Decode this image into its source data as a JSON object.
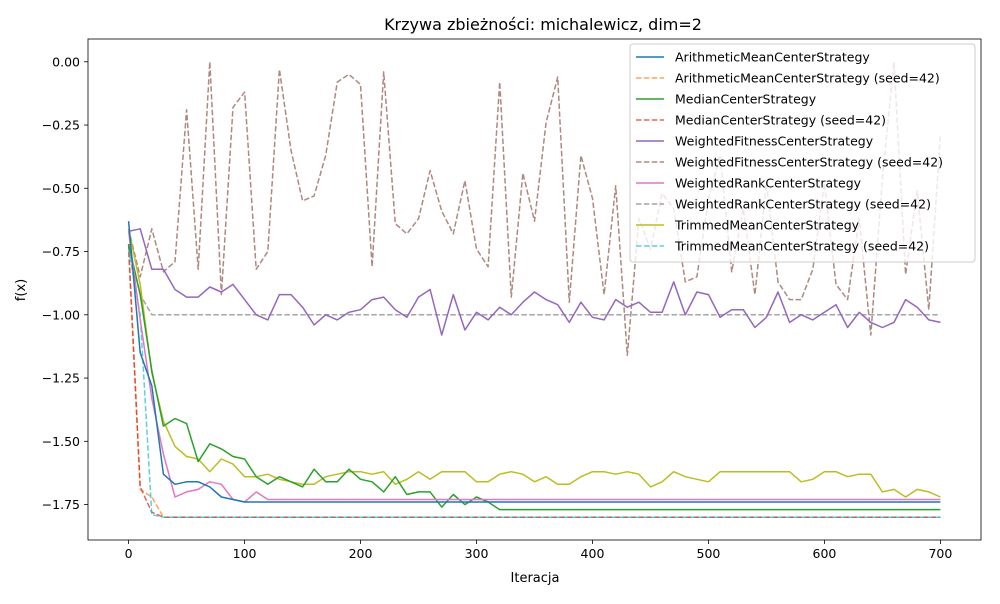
{
  "chart_data": {
    "type": "line",
    "title": "Krzywa zbieżności: michalewicz, dim=2",
    "xlabel": "Iteracja",
    "ylabel": "f(x)",
    "xlim": [
      -35,
      735
    ],
    "ylim": [
      -1.89,
      0.09
    ],
    "xticks": [
      0,
      100,
      200,
      300,
      400,
      500,
      600,
      700
    ],
    "yticks": [
      0.0,
      -0.25,
      -0.5,
      -0.75,
      -1.0,
      -1.25,
      -1.5,
      -1.75
    ],
    "xtick_labels": [
      "0",
      "100",
      "200",
      "300",
      "400",
      "500",
      "600",
      "700"
    ],
    "ytick_labels": [
      "0.00",
      "−0.25",
      "−0.50",
      "−0.75",
      "−1.00",
      "−1.25",
      "−1.50",
      "−1.75"
    ],
    "grid": false,
    "legend_position": "top-right",
    "series": [
      {
        "name": "WeightedFitnessCenterStrategy (seed=42)",
        "color": "#8c564b",
        "dash": true,
        "x": [
          0,
          10,
          20,
          30,
          40,
          50,
          60,
          70,
          80,
          90,
          100,
          110,
          120,
          130,
          140,
          150,
          160,
          170,
          180,
          190,
          200,
          210,
          220,
          230,
          240,
          250,
          260,
          270,
          280,
          290,
          300,
          310,
          320,
          330,
          340,
          350,
          360,
          370,
          380,
          390,
          400,
          410,
          420,
          430,
          440,
          450,
          460,
          470,
          480,
          490,
          500,
          510,
          520,
          530,
          540,
          550,
          560,
          570,
          580,
          590,
          600,
          610,
          620,
          630,
          640,
          650,
          660,
          670,
          680,
          690,
          700
        ],
        "y": [
          -0.66,
          -0.85,
          -0.66,
          -0.83,
          -0.79,
          -0.19,
          -0.82,
          0.0,
          -0.92,
          -0.18,
          -0.12,
          -0.82,
          -0.75,
          -0.03,
          -0.35,
          -0.55,
          -0.53,
          -0.37,
          -0.08,
          -0.05,
          -0.09,
          -0.81,
          -0.04,
          -0.64,
          -0.68,
          -0.62,
          -0.43,
          -0.59,
          -0.68,
          -0.47,
          -0.74,
          -0.81,
          -0.08,
          -0.93,
          -0.44,
          -0.63,
          -0.24,
          -0.06,
          -0.95,
          -0.37,
          -0.54,
          -0.92,
          -0.49,
          -1.16,
          -0.62,
          -0.74,
          -0.52,
          -0.58,
          -0.87,
          -0.85,
          -0.54,
          -0.37,
          -0.83,
          -0.58,
          -0.92,
          -0.48,
          -0.87,
          -0.94,
          -0.94,
          -0.82,
          -0.48,
          -0.88,
          -0.94,
          -0.62,
          -1.08,
          -0.46,
          0.0,
          -0.84,
          -0.51,
          -0.98,
          -0.29
        ]
      },
      {
        "name": "WeightedRankCenterStrategy (seed=42)",
        "color": "#7f7f7f",
        "dash": true,
        "x": [
          0,
          10,
          20,
          30,
          700
        ],
        "y": [
          -0.73,
          -0.92,
          -1.0,
          -1.0,
          -1.0
        ]
      },
      {
        "name": "WeightedFitnessCenterStrategy",
        "color": "#9467bd",
        "dash": false,
        "x": [
          0,
          10,
          20,
          30,
          40,
          50,
          60,
          70,
          80,
          90,
          100,
          110,
          120,
          130,
          140,
          150,
          160,
          170,
          180,
          190,
          200,
          210,
          220,
          230,
          240,
          250,
          260,
          270,
          280,
          290,
          300,
          310,
          320,
          330,
          340,
          350,
          360,
          370,
          380,
          390,
          400,
          410,
          420,
          430,
          440,
          450,
          460,
          470,
          480,
          490,
          500,
          510,
          520,
          530,
          540,
          550,
          560,
          570,
          580,
          590,
          600,
          610,
          620,
          630,
          640,
          650,
          660,
          670,
          680,
          690,
          700
        ],
        "y": [
          -0.67,
          -0.66,
          -0.82,
          -0.82,
          -0.9,
          -0.93,
          -0.93,
          -0.89,
          -0.91,
          -0.88,
          -0.94,
          -1.0,
          -1.02,
          -0.92,
          -0.92,
          -0.97,
          -1.04,
          -1.0,
          -1.02,
          -0.99,
          -0.98,
          -0.94,
          -0.93,
          -0.98,
          -1.01,
          -0.93,
          -0.9,
          -1.08,
          -0.92,
          -1.06,
          -0.99,
          -1.02,
          -0.97,
          -1.0,
          -0.95,
          -0.91,
          -0.94,
          -0.96,
          -1.03,
          -0.95,
          -1.01,
          -1.02,
          -0.94,
          -0.97,
          -0.95,
          -0.99,
          -0.99,
          -0.87,
          -1.0,
          -0.91,
          -0.92,
          -1.01,
          -0.98,
          -0.98,
          -1.05,
          -1.01,
          -0.91,
          -1.03,
          -1.0,
          -1.02,
          -0.99,
          -0.96,
          -1.05,
          -0.99,
          -1.03,
          -1.05,
          -1.03,
          -0.94,
          -0.97,
          -1.02,
          -1.03
        ]
      },
      {
        "name": "ArithmeticMeanCenterStrategy (seed=42)",
        "color": "#ff7f0e",
        "dash": true,
        "x": [
          0,
          10,
          20,
          30,
          40,
          700
        ],
        "y": [
          -0.75,
          -1.69,
          -1.72,
          -1.8,
          -1.8,
          -1.8
        ]
      },
      {
        "name": "MedianCenterStrategy (seed=42)",
        "color": "#d62728",
        "dash": true,
        "x": [
          0,
          10,
          20,
          30,
          40,
          700
        ],
        "y": [
          -0.72,
          -1.68,
          -1.78,
          -1.8,
          -1.8,
          -1.8
        ]
      },
      {
        "name": "TrimmedMeanCenterStrategy (seed=42)",
        "color": "#17becf",
        "dash": true,
        "x": [
          0,
          10,
          20,
          30,
          700
        ],
        "y": [
          -0.74,
          -1.0,
          -1.79,
          -1.8,
          -1.8
        ]
      },
      {
        "name": "TrimmedMeanCenterStrategy",
        "color": "#bcbd22",
        "dash": false,
        "x": [
          0,
          10,
          20,
          30,
          40,
          50,
          60,
          70,
          80,
          90,
          100,
          110,
          120,
          130,
          140,
          150,
          160,
          170,
          180,
          190,
          200,
          210,
          220,
          230,
          240,
          250,
          260,
          270,
          280,
          290,
          300,
          310,
          320,
          330,
          340,
          350,
          360,
          370,
          380,
          390,
          400,
          410,
          420,
          430,
          440,
          450,
          460,
          470,
          480,
          490,
          500,
          510,
          520,
          530,
          540,
          550,
          560,
          570,
          580,
          590,
          600,
          610,
          620,
          630,
          640,
          650,
          660,
          670,
          680,
          690,
          700
        ],
        "y": [
          -0.66,
          -0.88,
          -1.23,
          -1.42,
          -1.52,
          -1.56,
          -1.57,
          -1.62,
          -1.57,
          -1.59,
          -1.64,
          -1.64,
          -1.63,
          -1.65,
          -1.66,
          -1.67,
          -1.67,
          -1.64,
          -1.63,
          -1.62,
          -1.62,
          -1.63,
          -1.62,
          -1.67,
          -1.65,
          -1.62,
          -1.65,
          -1.62,
          -1.62,
          -1.62,
          -1.66,
          -1.66,
          -1.63,
          -1.62,
          -1.63,
          -1.66,
          -1.64,
          -1.67,
          -1.67,
          -1.64,
          -1.62,
          -1.62,
          -1.63,
          -1.62,
          -1.63,
          -1.68,
          -1.66,
          -1.62,
          -1.64,
          -1.65,
          -1.66,
          -1.62,
          -1.62,
          -1.62,
          -1.62,
          -1.62,
          -1.62,
          -1.62,
          -1.66,
          -1.65,
          -1.62,
          -1.62,
          -1.64,
          -1.63,
          -1.63,
          -1.7,
          -1.69,
          -1.72,
          -1.69,
          -1.7,
          -1.72
        ]
      },
      {
        "name": "MedianCenterStrategy",
        "color": "#2ca02c",
        "dash": false,
        "x": [
          0,
          10,
          20,
          30,
          40,
          50,
          60,
          70,
          80,
          90,
          100,
          110,
          120,
          130,
          140,
          150,
          160,
          170,
          180,
          190,
          200,
          210,
          220,
          230,
          240,
          250,
          260,
          270,
          280,
          290,
          300,
          310,
          320,
          700
        ],
        "y": [
          -0.72,
          -0.92,
          -1.22,
          -1.44,
          -1.41,
          -1.43,
          -1.58,
          -1.51,
          -1.53,
          -1.56,
          -1.57,
          -1.64,
          -1.67,
          -1.64,
          -1.66,
          -1.68,
          -1.61,
          -1.66,
          -1.66,
          -1.61,
          -1.65,
          -1.66,
          -1.7,
          -1.64,
          -1.71,
          -1.7,
          -1.7,
          -1.76,
          -1.71,
          -1.75,
          -1.72,
          -1.74,
          -1.77,
          -1.77
        ]
      },
      {
        "name": "WeightedRankCenterStrategy",
        "color": "#e377c2",
        "dash": false,
        "x": [
          0,
          10,
          20,
          30,
          40,
          50,
          60,
          70,
          80,
          90,
          100,
          110,
          120,
          130,
          700
        ],
        "y": [
          -0.67,
          -1.02,
          -1.33,
          -1.55,
          -1.72,
          -1.7,
          -1.69,
          -1.66,
          -1.67,
          -1.73,
          -1.74,
          -1.7,
          -1.73,
          -1.73,
          -1.73
        ]
      },
      {
        "name": "ArithmeticMeanCenterStrategy",
        "color": "#1f77b4",
        "dash": false,
        "x": [
          0,
          10,
          20,
          30,
          40,
          50,
          60,
          70,
          80,
          90,
          100,
          700
        ],
        "y": [
          -0.63,
          -1.15,
          -1.28,
          -1.63,
          -1.67,
          -1.66,
          -1.66,
          -1.68,
          -1.72,
          -1.73,
          -1.74,
          -1.74
        ]
      }
    ],
    "legend_order": [
      "ArithmeticMeanCenterStrategy",
      "ArithmeticMeanCenterStrategy (seed=42)",
      "MedianCenterStrategy",
      "MedianCenterStrategy (seed=42)",
      "WeightedFitnessCenterStrategy",
      "WeightedFitnessCenterStrategy (seed=42)",
      "WeightedRankCenterStrategy",
      "WeightedRankCenterStrategy (seed=42)",
      "TrimmedMeanCenterStrategy",
      "TrimmedMeanCenterStrategy (seed=42)"
    ]
  }
}
